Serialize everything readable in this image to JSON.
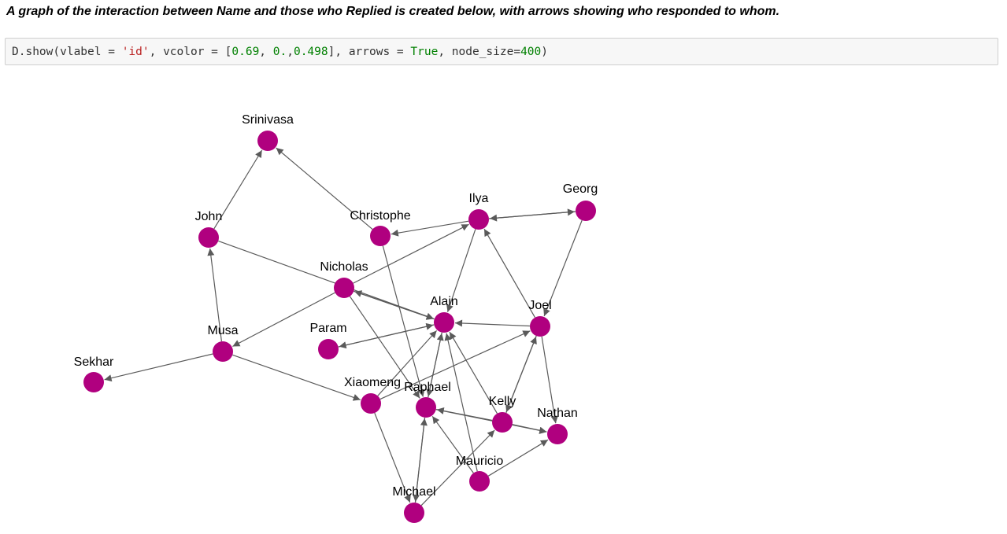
{
  "heading": "A graph of the interaction between Name and those who Replied is created below, with arrows showing who responded to whom.",
  "code": {
    "prefix": "D.show(vlabel = ",
    "vlabel": "'id'",
    "mid1": ", vcolor = [",
    "c1": "0.69",
    "sep1": ", ",
    "c2": "0.",
    "sep2": ",",
    "c3": "0.498",
    "mid2": "], arrows = ",
    "arrows": "True",
    "mid3": ", node_size=",
    "size": "400",
    "suffix": ")"
  },
  "graph": {
    "node_color": "#b0007f",
    "edge_color": "#5a5a5a",
    "nodes": [
      {
        "id": "Srinivasa"
      },
      {
        "id": "John"
      },
      {
        "id": "Christophe"
      },
      {
        "id": "Ilya"
      },
      {
        "id": "Georg"
      },
      {
        "id": "Nicholas"
      },
      {
        "id": "Alain"
      },
      {
        "id": "Joel"
      },
      {
        "id": "Musa"
      },
      {
        "id": "Param"
      },
      {
        "id": "Sekhar"
      },
      {
        "id": "Xiaomeng"
      },
      {
        "id": "Raphael"
      },
      {
        "id": "Kelly"
      },
      {
        "id": "Nathan"
      },
      {
        "id": "Mauricio"
      },
      {
        "id": "Michael"
      }
    ],
    "edges": [
      [
        "John",
        "Srinivasa"
      ],
      [
        "Christophe",
        "Srinivasa"
      ],
      [
        "Ilya",
        "Christophe"
      ],
      [
        "Ilya",
        "Georg"
      ],
      [
        "Georg",
        "Ilya"
      ],
      [
        "Georg",
        "Joel"
      ],
      [
        "Nicholas",
        "Ilya"
      ],
      [
        "John",
        "Alain"
      ],
      [
        "Musa",
        "John"
      ],
      [
        "Nicholas",
        "Musa"
      ],
      [
        "Alain",
        "Nicholas"
      ],
      [
        "Nicholas",
        "Alain"
      ],
      [
        "Ilya",
        "Alain"
      ],
      [
        "Joel",
        "Ilya"
      ],
      [
        "Joel",
        "Alain"
      ],
      [
        "Param",
        "Alain"
      ],
      [
        "Alain",
        "Param"
      ],
      [
        "Musa",
        "Sekhar"
      ],
      [
        "Musa",
        "Xiaomeng"
      ],
      [
        "Xiaomeng",
        "Joel"
      ],
      [
        "Xiaomeng",
        "Alain"
      ],
      [
        "Xiaomeng",
        "Michael"
      ],
      [
        "Christophe",
        "Raphael"
      ],
      [
        "Nicholas",
        "Raphael"
      ],
      [
        "Raphael",
        "Alain"
      ],
      [
        "Alain",
        "Raphael"
      ],
      [
        "Kelly",
        "Alain"
      ],
      [
        "Kelly",
        "Joel"
      ],
      [
        "Joel",
        "Kelly"
      ],
      [
        "Kelly",
        "Raphael"
      ],
      [
        "Raphael",
        "Nathan"
      ],
      [
        "Joel",
        "Nathan"
      ],
      [
        "Kelly",
        "Nathan"
      ],
      [
        "Mauricio",
        "Alain"
      ],
      [
        "Mauricio",
        "Raphael"
      ],
      [
        "Mauricio",
        "Nathan"
      ],
      [
        "Michael",
        "Raphael"
      ],
      [
        "Raphael",
        "Michael"
      ],
      [
        "Michael",
        "Kelly"
      ]
    ]
  }
}
